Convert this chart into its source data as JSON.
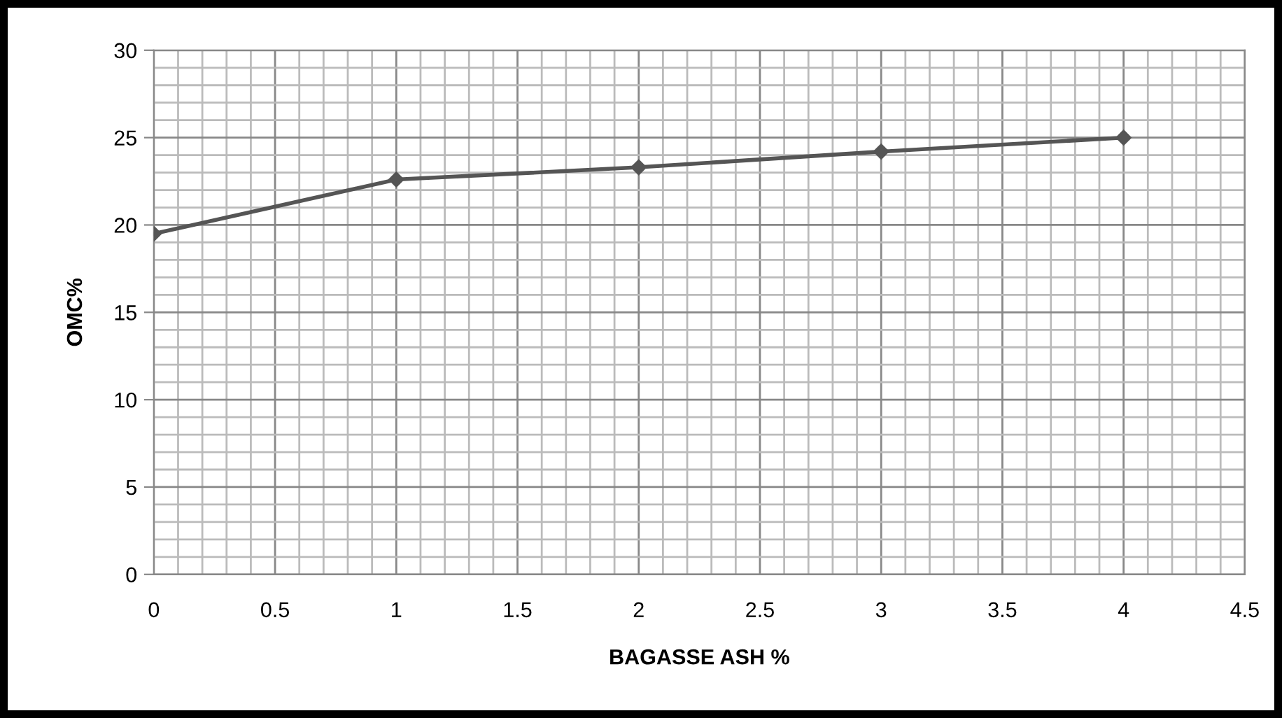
{
  "chart_data": {
    "type": "line",
    "xlabel": "BAGASSE ASH %",
    "ylabel": "OMC%",
    "x": [
      0,
      1,
      2,
      3,
      4
    ],
    "series": [
      {
        "color": "#555555",
        "values": [
          19.5,
          22.6,
          23.3,
          24.2,
          25.0
        ]
      }
    ],
    "xlim": [
      0,
      4.5
    ],
    "xticks": [
      0,
      0.5,
      1,
      1.5,
      2,
      2.5,
      3,
      3.5,
      4,
      4.5
    ],
    "ylim": [
      0,
      30
    ],
    "yticks": [
      0,
      5,
      10,
      15,
      20,
      25,
      30
    ],
    "grid": true,
    "marker": "diamond",
    "line_style": "solid"
  }
}
